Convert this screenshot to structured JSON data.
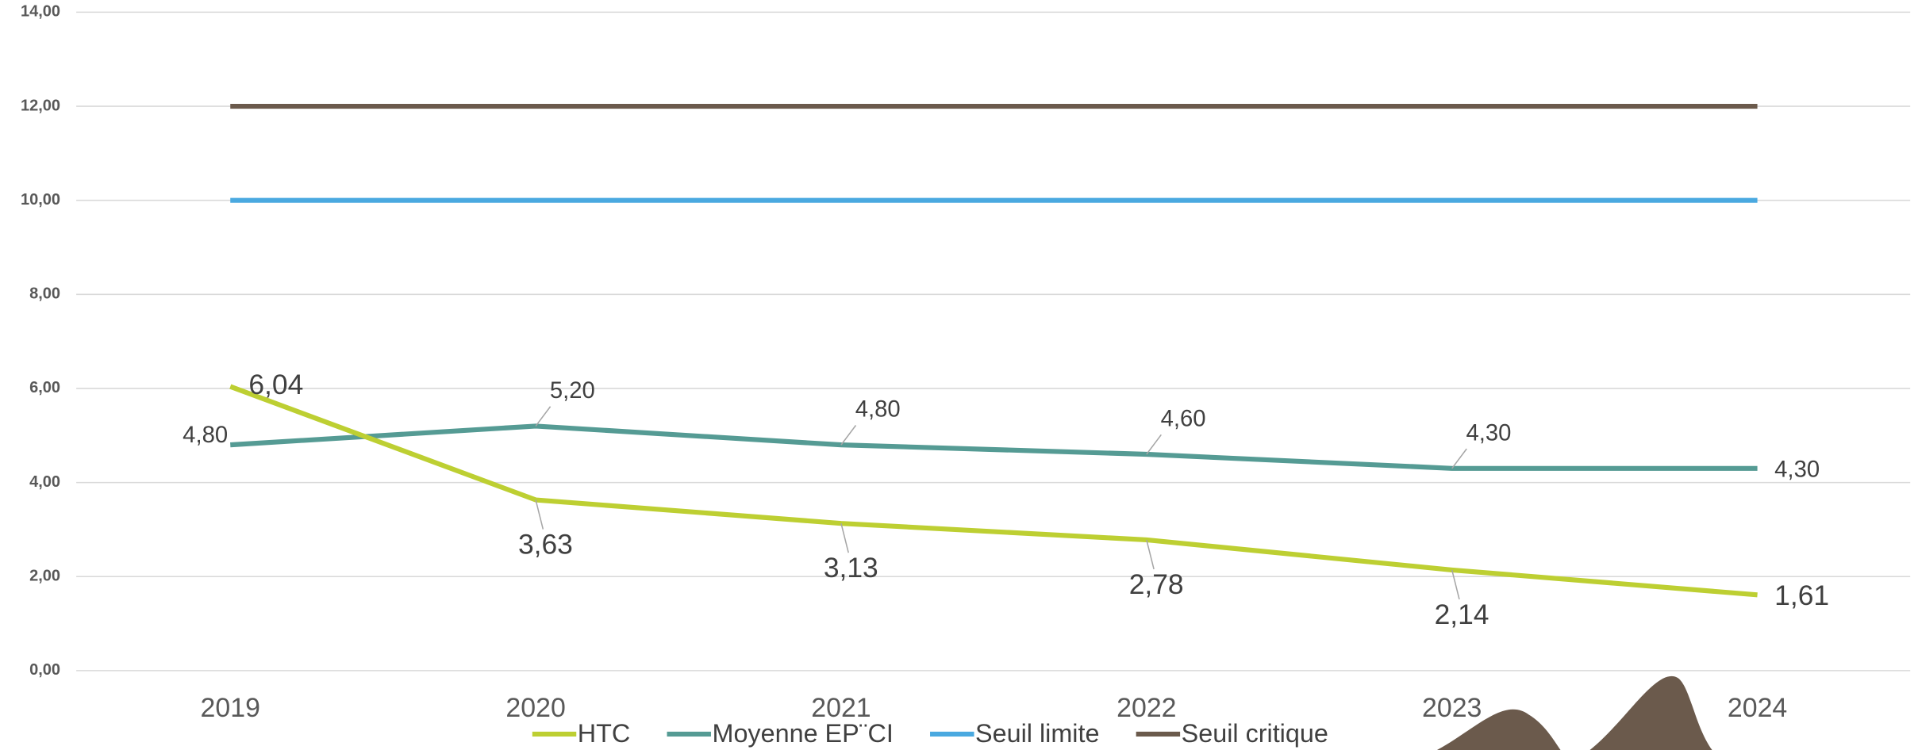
{
  "chart_data": {
    "type": "line",
    "categories": [
      "2019",
      "2020",
      "2021",
      "2022",
      "2023",
      "2024"
    ],
    "series": [
      {
        "name": "HTC",
        "color": "#bdcf32",
        "values": [
          6.04,
          3.63,
          3.13,
          2.78,
          2.14,
          1.61
        ],
        "value_labels": [
          "6,04",
          "3,63",
          "3,13",
          "2,78",
          "2,14",
          "1,61"
        ]
      },
      {
        "name": "Moyenne EP¨CI",
        "color": "#559b94",
        "values": [
          4.8,
          5.2,
          4.8,
          4.6,
          4.3,
          4.3
        ],
        "value_labels": [
          "4,80",
          "5,20",
          "4,80",
          "4,60",
          "4,30",
          "4,30"
        ]
      },
      {
        "name": "Seuil limite",
        "color": "#4aa9e0",
        "values": [
          10,
          10,
          10,
          10,
          10,
          10
        ]
      },
      {
        "name": "Seuil critique",
        "color": "#6b5a4c",
        "values": [
          12,
          12,
          12,
          12,
          12,
          12
        ]
      }
    ],
    "ylim": [
      0,
      14
    ],
    "yticks": [
      {
        "value": 0,
        "label": "0,00"
      },
      {
        "value": 2,
        "label": "2,00"
      },
      {
        "value": 4,
        "label": "4,00"
      },
      {
        "value": 6,
        "label": "6,00"
      },
      {
        "value": 8,
        "label": "8,00"
      },
      {
        "value": 10,
        "label": "10,00"
      },
      {
        "value": 12,
        "label": "12,00"
      },
      {
        "value": 14,
        "label": "14,00"
      }
    ],
    "grid": true,
    "legend": "bottom"
  }
}
